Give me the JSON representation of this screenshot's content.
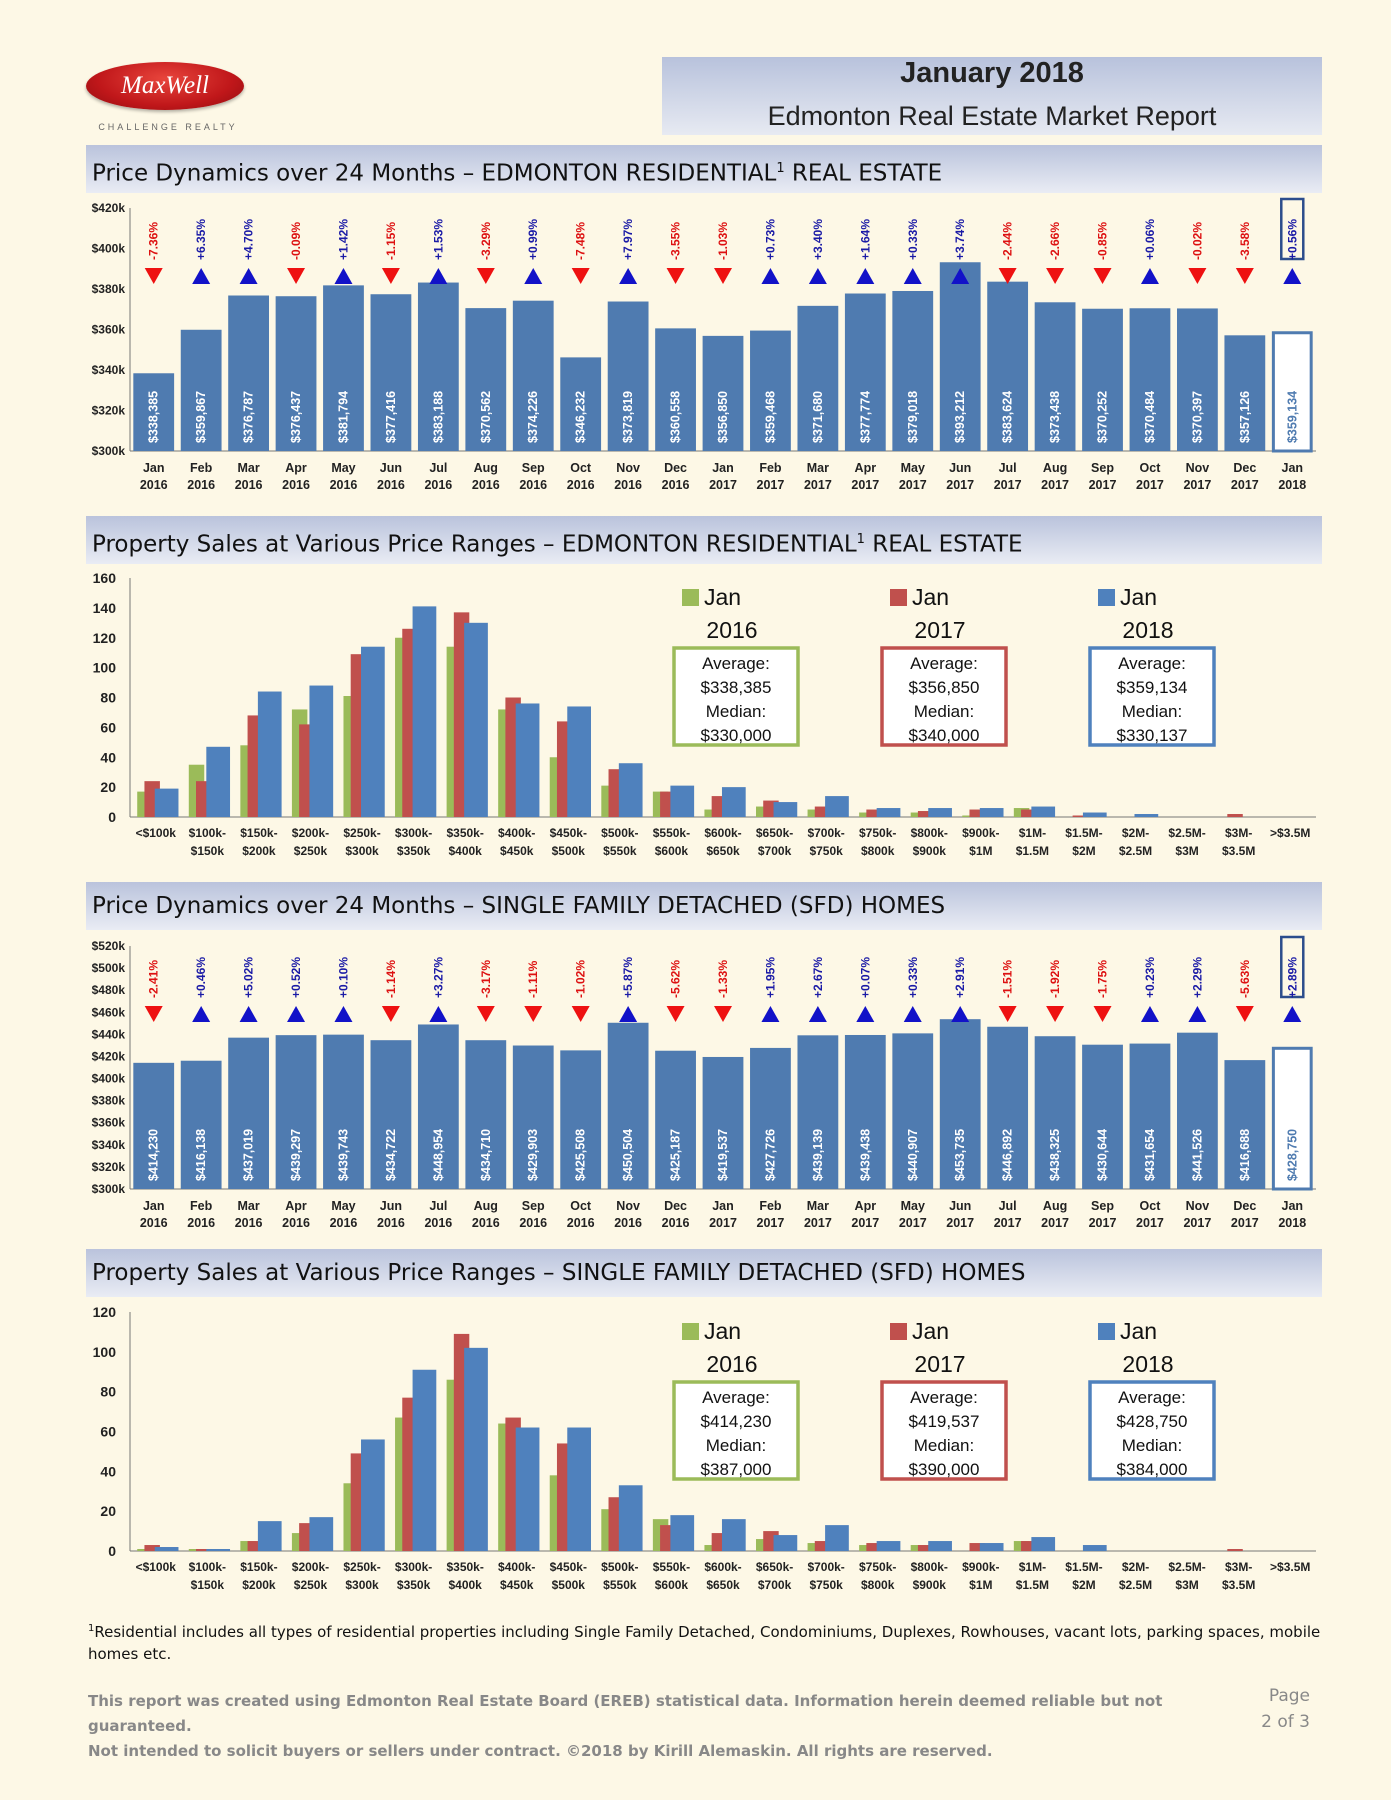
{
  "brand": {
    "logo": "MaxWell",
    "tagline": "CHALLENGE REALTY"
  },
  "header": {
    "month": "January 2018",
    "title": "Edmonton Real Estate Market Report"
  },
  "sections": {
    "s1_prefix": "Price Dynamics over 24 Months – EDMONTON RESIDENTIAL",
    "s1_suffix": " REAL ESTATE",
    "s2_prefix": "Property Sales at Various Price Ranges – EDMONTON RESIDENTIAL",
    "s2_suffix": " REAL ESTATE",
    "s3": "Price Dynamics over 24 Months – SINGLE FAMILY DETACHED (SFD) HOMES",
    "s4": "Property Sales at Various Price Ranges – SINGLE FAMILY DETACHED (SFD) HOMES",
    "sup": "1"
  },
  "colors": {
    "bar": "#4f7bb0",
    "up": "#1212c8",
    "down": "#ee1111",
    "jan2016": "#9bbb59",
    "jan2017": "#c0504d",
    "jan2018": "#4f81bd"
  },
  "chart_data": [
    {
      "type": "bar",
      "title": "Price Dynamics over 24 Months – EDMONTON RESIDENTIAL REAL ESTATE",
      "categories": [
        [
          "Jan",
          "2016"
        ],
        [
          "Feb",
          "2016"
        ],
        [
          "Mar",
          "2016"
        ],
        [
          "Apr",
          "2016"
        ],
        [
          "May",
          "2016"
        ],
        [
          "Jun",
          "2016"
        ],
        [
          "Jul",
          "2016"
        ],
        [
          "Aug",
          "2016"
        ],
        [
          "Sep",
          "2016"
        ],
        [
          "Oct",
          "2016"
        ],
        [
          "Nov",
          "2016"
        ],
        [
          "Dec",
          "2016"
        ],
        [
          "Jan",
          "2017"
        ],
        [
          "Feb",
          "2017"
        ],
        [
          "Mar",
          "2017"
        ],
        [
          "Apr",
          "2017"
        ],
        [
          "May",
          "2017"
        ],
        [
          "Jun",
          "2017"
        ],
        [
          "Jul",
          "2017"
        ],
        [
          "Aug",
          "2017"
        ],
        [
          "Sep",
          "2017"
        ],
        [
          "Oct",
          "2017"
        ],
        [
          "Nov",
          "2017"
        ],
        [
          "Dec",
          "2017"
        ],
        [
          "Jan",
          "2018"
        ]
      ],
      "values": [
        338385,
        359867,
        376787,
        376437,
        381794,
        377416,
        383188,
        370562,
        374226,
        346232,
        373819,
        360558,
        356850,
        359468,
        371680,
        377774,
        379018,
        393212,
        383624,
        373438,
        370252,
        370484,
        370397,
        357126,
        359134
      ],
      "labels": [
        "$338,385",
        "$359,867",
        "$376,787",
        "$376,437",
        "$381,794",
        "$377,416",
        "$383,188",
        "$370,562",
        "$374,226",
        "$346,232",
        "$373,819",
        "$360,558",
        "$356,850",
        "$359,468",
        "$371,680",
        "$377,774",
        "$379,018",
        "$393,212",
        "$383,624",
        "$373,438",
        "$370,252",
        "$370,484",
        "$370,397",
        "$357,126",
        "$359,134"
      ],
      "changes": [
        "-7.36%",
        "+6.35%",
        "+4.70%",
        "-0.09%",
        "+1.42%",
        "-1.15%",
        "+1.53%",
        "-3.29%",
        "+0.99%",
        "-7.48%",
        "+7.97%",
        "-3.55%",
        "-1.03%",
        "+0.73%",
        "+3.40%",
        "+1.64%",
        "+0.33%",
        "+3.74%",
        "-2.44%",
        "-2.66%",
        "-0.85%",
        "+0.06%",
        "-0.02%",
        "-3.58%",
        "+0.56%"
      ],
      "ylim": [
        300000,
        420000
      ],
      "yticks": [
        "$300k",
        "$320k",
        "$340k",
        "$360k",
        "$380k",
        "$400k",
        "$420k"
      ]
    },
    {
      "type": "bar",
      "title": "Property Sales at Various Price Ranges – EDMONTON RESIDENTIAL REAL ESTATE",
      "categories": [
        [
          "<$100k",
          ""
        ],
        [
          "$100k-",
          "$150k"
        ],
        [
          "$150k-",
          "$200k"
        ],
        [
          "$200k-",
          "$250k"
        ],
        [
          "$250k-",
          "$300k"
        ],
        [
          "$300k-",
          "$350k"
        ],
        [
          "$350k-",
          "$400k"
        ],
        [
          "$400k-",
          "$450k"
        ],
        [
          "$450k-",
          "$500k"
        ],
        [
          "$500k-",
          "$550k"
        ],
        [
          "$550k-",
          "$600k"
        ],
        [
          "$600k-",
          "$650k"
        ],
        [
          "$650k-",
          "$700k"
        ],
        [
          "$700k-",
          "$750k"
        ],
        [
          "$750k-",
          "$800k"
        ],
        [
          "$800k-",
          "$900k"
        ],
        [
          "$900k-",
          "$1M"
        ],
        [
          "$1M-",
          "$1.5M"
        ],
        [
          "$1.5M-",
          "$2M"
        ],
        [
          "$2M-",
          "$2.5M"
        ],
        [
          "$2.5M-",
          "$3M"
        ],
        [
          "$3M-",
          "$3.5M"
        ],
        [
          ">$3.5M",
          ""
        ]
      ],
      "series": [
        {
          "name": "Jan 2016",
          "values": [
            17,
            35,
            48,
            72,
            81,
            120,
            114,
            72,
            40,
            21,
            17,
            5,
            7,
            5,
            3,
            3,
            1,
            6,
            0,
            0,
            0,
            0,
            0
          ]
        },
        {
          "name": "Jan 2017",
          "values": [
            24,
            24,
            68,
            62,
            109,
            126,
            137,
            80,
            64,
            32,
            17,
            14,
            11,
            7,
            5,
            4,
            5,
            5,
            1,
            0,
            0,
            2,
            0
          ]
        },
        {
          "name": "Jan 2018",
          "values": [
            19,
            47,
            84,
            88,
            114,
            141,
            130,
            76,
            74,
            36,
            21,
            20,
            10,
            14,
            6,
            6,
            6,
            7,
            3,
            2,
            0,
            0,
            0
          ]
        }
      ],
      "ylim": [
        0,
        160
      ],
      "yticks": [
        "0",
        "20",
        "40",
        "60",
        "80",
        "100",
        "120",
        "140",
        "160"
      ],
      "legend": [
        {
          "l1": "Jan",
          "l2": "2016",
          "avg_label": "Average:",
          "avg": "$338,385",
          "med_label": "Median:",
          "med": "$330,000"
        },
        {
          "l1": "Jan",
          "l2": "2017",
          "avg_label": "Average:",
          "avg": "$356,850",
          "med_label": "Median:",
          "med": "$340,000"
        },
        {
          "l1": "Jan",
          "l2": "2018",
          "avg_label": "Average:",
          "avg": "$359,134",
          "med_label": "Median:",
          "med": "$330,137"
        }
      ]
    },
    {
      "type": "bar",
      "title": "Price Dynamics over 24 Months – SINGLE FAMILY DETACHED (SFD) HOMES",
      "categories": [
        [
          "Jan",
          "2016"
        ],
        [
          "Feb",
          "2016"
        ],
        [
          "Mar",
          "2016"
        ],
        [
          "Apr",
          "2016"
        ],
        [
          "May",
          "2016"
        ],
        [
          "Jun",
          "2016"
        ],
        [
          "Jul",
          "2016"
        ],
        [
          "Aug",
          "2016"
        ],
        [
          "Sep",
          "2016"
        ],
        [
          "Oct",
          "2016"
        ],
        [
          "Nov",
          "2016"
        ],
        [
          "Dec",
          "2016"
        ],
        [
          "Jan",
          "2017"
        ],
        [
          "Feb",
          "2017"
        ],
        [
          "Mar",
          "2017"
        ],
        [
          "Apr",
          "2017"
        ],
        [
          "May",
          "2017"
        ],
        [
          "Jun",
          "2017"
        ],
        [
          "Jul",
          "2017"
        ],
        [
          "Aug",
          "2017"
        ],
        [
          "Sep",
          "2017"
        ],
        [
          "Oct",
          "2017"
        ],
        [
          "Nov",
          "2017"
        ],
        [
          "Dec",
          "2017"
        ],
        [
          "Jan",
          "2018"
        ]
      ],
      "values": [
        414230,
        416138,
        437019,
        439297,
        439743,
        434722,
        448954,
        434710,
        429903,
        425508,
        450504,
        425187,
        419537,
        427726,
        439139,
        439438,
        440907,
        453735,
        446892,
        438325,
        430644,
        431654,
        441526,
        416688,
        428750
      ],
      "labels": [
        "$414,230",
        "$416,138",
        "$437,019",
        "$439,297",
        "$439,743",
        "$434,722",
        "$448,954",
        "$434,710",
        "$429,903",
        "$425,508",
        "$450,504",
        "$425,187",
        "$419,537",
        "$427,726",
        "$439,139",
        "$439,438",
        "$440,907",
        "$453,735",
        "$446,892",
        "$438,325",
        "$430,644",
        "$431,654",
        "$441,526",
        "$416,688",
        "$428,750"
      ],
      "changes": [
        "-2.41%",
        "+0.46%",
        "+5.02%",
        "+0.52%",
        "+0.10%",
        "-1.14%",
        "+3.27%",
        "-3.17%",
        "-1.11%",
        "-1.02%",
        "+5.87%",
        "-5.62%",
        "-1.33%",
        "+1.95%",
        "+2.67%",
        "+0.07%",
        "+0.33%",
        "+2.91%",
        "-1.51%",
        "-1.92%",
        "-1.75%",
        "+0.23%",
        "+2.29%",
        "-5.63%",
        "+2.89%"
      ],
      "ylim": [
        300000,
        520000
      ],
      "yticks": [
        "$300k",
        "$320k",
        "$340k",
        "$360k",
        "$380k",
        "$400k",
        "$420k",
        "$440k",
        "$460k",
        "$480k",
        "$500k",
        "$520k"
      ]
    },
    {
      "type": "bar",
      "title": "Property Sales at Various Price Ranges – SINGLE FAMILY DETACHED (SFD) HOMES",
      "categories": [
        [
          "<$100k",
          ""
        ],
        [
          "$100k-",
          "$150k"
        ],
        [
          "$150k-",
          "$200k"
        ],
        [
          "$200k-",
          "$250k"
        ],
        [
          "$250k-",
          "$300k"
        ],
        [
          "$300k-",
          "$350k"
        ],
        [
          "$350k-",
          "$400k"
        ],
        [
          "$400k-",
          "$450k"
        ],
        [
          "$450k-",
          "$500k"
        ],
        [
          "$500k-",
          "$550k"
        ],
        [
          "$550k-",
          "$600k"
        ],
        [
          "$600k-",
          "$650k"
        ],
        [
          "$650k-",
          "$700k"
        ],
        [
          "$700k-",
          "$750k"
        ],
        [
          "$750k-",
          "$800k"
        ],
        [
          "$800k-",
          "$900k"
        ],
        [
          "$900k-",
          "$1M"
        ],
        [
          "$1M-",
          "$1.5M"
        ],
        [
          "$1.5M-",
          "$2M"
        ],
        [
          "$2M-",
          "$2.5M"
        ],
        [
          "$2.5M-",
          "$3M"
        ],
        [
          "$3M-",
          "$3.5M"
        ],
        [
          ">$3.5M",
          ""
        ]
      ],
      "series": [
        {
          "name": "Jan 2016",
          "values": [
            1,
            1,
            5,
            9,
            34,
            67,
            86,
            64,
            38,
            21,
            16,
            3,
            6,
            4,
            3,
            3,
            0,
            5,
            0,
            0,
            0,
            0,
            0
          ]
        },
        {
          "name": "Jan 2017",
          "values": [
            3,
            1,
            5,
            14,
            49,
            77,
            109,
            67,
            54,
            27,
            13,
            9,
            10,
            5,
            4,
            3,
            4,
            5,
            0,
            0,
            0,
            1,
            0
          ]
        },
        {
          "name": "Jan 2018",
          "values": [
            2,
            1,
            15,
            17,
            56,
            91,
            102,
            62,
            62,
            33,
            18,
            16,
            8,
            13,
            5,
            5,
            4,
            7,
            3,
            0,
            0,
            0,
            0
          ]
        }
      ],
      "ylim": [
        0,
        120
      ],
      "yticks": [
        "0",
        "20",
        "40",
        "60",
        "80",
        "100",
        "120"
      ],
      "legend": [
        {
          "l1": "Jan",
          "l2": "2016",
          "avg_label": "Average:",
          "avg": "$414,230",
          "med_label": "Median:",
          "med": "$387,000"
        },
        {
          "l1": "Jan",
          "l2": "2017",
          "avg_label": "Average:",
          "avg": "$419,537",
          "med_label": "Median:",
          "med": "$390,000"
        },
        {
          "l1": "Jan",
          "l2": "2018",
          "avg_label": "Average:",
          "avg": "$428,750",
          "med_label": "Median:",
          "med": "$384,000"
        }
      ]
    }
  ],
  "footnote": {
    "sup": "1",
    "text": "Residential includes all types of residential properties including Single Family Detached, Condominiums, Duplexes, Rowhouses, vacant lots, parking spaces, mobile homes etc."
  },
  "disclaimer": {
    "line1": "This report was created using Edmonton Real Estate Board (EREB) statistical data. Information herein deemed reliable but not guaranteed.",
    "line2": "Not intended to solicit buyers or sellers under contract. ©2018 by Kirill Alemaskin. All rights are reserved."
  },
  "page": {
    "label": "Page",
    "of": "2 of 3"
  }
}
